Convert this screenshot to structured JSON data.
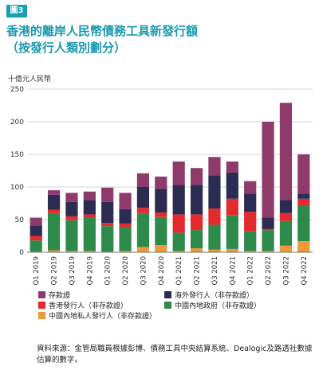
{
  "figure_label": "圖3",
  "title_line1": "香港的離岸人民幣債務工具新發行額",
  "title_line2": "（按發行人類別劃分）",
  "unit": "十億元人民幣",
  "source": "資料來源：金管局職員根據彭博、債務工具中央結算系統、Dealogic及路透社數據估算的數字。",
  "colors": {
    "cd": "#8e3b6c",
    "offshore": "#2c2b52",
    "hk": "#e32b2e",
    "mainland_gov": "#2e8a4a",
    "mainland_private": "#ee9a3a"
  },
  "chart_data": {
    "type": "bar",
    "stacked": true,
    "categories": [
      "Q1 2019",
      "Q2 2019",
      "Q3 2019",
      "Q4 2019",
      "Q1 2020",
      "Q2 2020",
      "Q3 2020",
      "Q4 2020",
      "Q1 2021",
      "Q2 2021",
      "Q3 2021",
      "Q4 2021",
      "Q1 2022",
      "Q2 2022",
      "Q3 2022",
      "Q4 2022"
    ],
    "ylim": [
      0,
      250
    ],
    "yticks": [
      0,
      50,
      100,
      150,
      200,
      250
    ],
    "grid": true,
    "legend_position": "bottom",
    "series": [
      {
        "key": "mainland_private",
        "name": "中國內地私人發行人（非存款證）",
        "values": [
          1,
          3,
          2,
          2,
          1,
          2,
          8,
          11,
          2,
          6,
          4,
          5,
          2,
          2,
          10,
          17
        ]
      },
      {
        "key": "mainland_gov",
        "name": "中國內地政府（非存款證）",
        "values": [
          17,
          57,
          47,
          51,
          39,
          37,
          52,
          43,
          28,
          28,
          38,
          52,
          30,
          32,
          38,
          55
        ]
      },
      {
        "key": "hk",
        "name": "香港發行人（非存款證）",
        "values": [
          7,
          5,
          6,
          5,
          5,
          5,
          8,
          7,
          28,
          24,
          25,
          25,
          30,
          2,
          12,
          10
        ]
      },
      {
        "key": "offshore",
        "name": "海外發行人（非存款證）",
        "values": [
          16,
          23,
          22,
          22,
          32,
          22,
          32,
          36,
          45,
          45,
          51,
          40,
          28,
          17,
          20,
          8
        ]
      },
      {
        "key": "cd",
        "name": "存款證",
        "values": [
          12,
          7,
          14,
          13,
          22,
          25,
          21,
          19,
          36,
          26,
          28,
          17,
          19,
          147,
          149,
          60
        ]
      }
    ]
  },
  "legend": {
    "cd": "存款證",
    "offshore": "海外發行人（非存款證）",
    "hk": "香港發行人（非存款證）",
    "mainland_gov": "中國內地政府（非存款證）",
    "mainland_private": "中國內地私人發行人（非存款證）"
  }
}
